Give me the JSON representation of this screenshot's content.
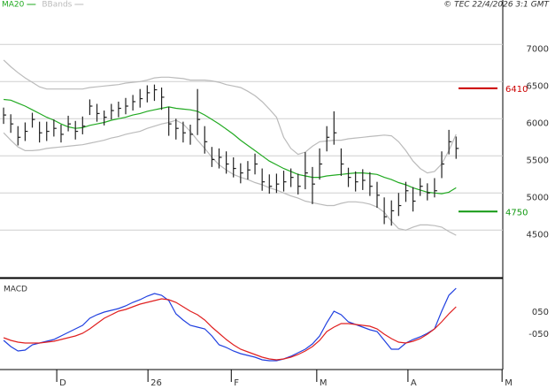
{
  "chart_data": [
    {
      "type": "ohlc",
      "note": "© TEC 22/4/2026 3:1 GMT",
      "xlim": [
        -0.5,
        69.5
      ],
      "ylim": [
        3860,
        7480
      ],
      "yticks": [
        4500,
        5000,
        5500,
        6000,
        6500,
        7000
      ],
      "grid": true,
      "bar_color": "#222222",
      "high": [
        6150,
        6060,
        5900,
        5950,
        6080,
        5960,
        5960,
        5990,
        5920,
        6040,
        5970,
        6030,
        6260,
        6200,
        6110,
        6200,
        6230,
        6280,
        6320,
        6400,
        6450,
        6460,
        6420,
        6160,
        6000,
        5960,
        5920,
        6400,
        5900,
        5620,
        5600,
        5560,
        5480,
        5400,
        5430,
        5530,
        5330,
        5250,
        5260,
        5300,
        5330,
        5260,
        5550,
        5350,
        5600,
        5900,
        6100,
        5600,
        5340,
        5290,
        5320,
        5280,
        5150,
        4940,
        4900,
        5000,
        5150,
        5080,
        5200,
        5130,
        5200,
        5560,
        5850,
        5760
      ],
      "low": [
        5930,
        5810,
        5640,
        5700,
        5880,
        5680,
        5700,
        5760,
        5680,
        5830,
        5720,
        5790,
        6050,
        5960,
        5910,
        5990,
        6020,
        6060,
        6110,
        6150,
        6220,
        6240,
        6120,
        5770,
        5720,
        5680,
        5650,
        5780,
        5530,
        5350,
        5330,
        5260,
        5210,
        5130,
        5180,
        5250,
        5030,
        4990,
        5000,
        5020,
        5080,
        4980,
        5050,
        4850,
        5180,
        5560,
        5650,
        5230,
        5080,
        5020,
        5040,
        4960,
        4800,
        4580,
        4560,
        4690,
        4880,
        4750,
        4960,
        4900,
        4940,
        5200,
        5520,
        5460
      ],
      "close": [
        6050,
        5930,
        5750,
        5830,
        5990,
        5810,
        5830,
        5870,
        5790,
        5930,
        5830,
        5900,
        6170,
        6070,
        6020,
        6110,
        6140,
        6170,
        6230,
        6270,
        6350,
        6390,
        6290,
        5930,
        5870,
        5810,
        5790,
        5990,
        5690,
        5450,
        5480,
        5390,
        5330,
        5270,
        5310,
        5390,
        5150,
        5090,
        5120,
        5150,
        5210,
        5090,
        5270,
        5120,
        5390,
        5750,
        5810,
        5390,
        5210,
        5150,
        5170,
        5090,
        4970,
        4680,
        4760,
        4830,
        5030,
        4890,
        5090,
        5000,
        5030,
        5390,
        5690,
        5600
      ],
      "series": [
        {
          "name": "MA20",
          "color": "#22aa22",
          "values": [
            6260,
            6250,
            6210,
            6170,
            6120,
            6070,
            6020,
            5980,
            5930,
            5890,
            5870,
            5880,
            5910,
            5930,
            5950,
            5980,
            6000,
            6020,
            6050,
            6070,
            6100,
            6120,
            6140,
            6160,
            6140,
            6130,
            6120,
            6100,
            6050,
            5990,
            5930,
            5860,
            5790,
            5710,
            5640,
            5570,
            5500,
            5430,
            5380,
            5330,
            5290,
            5250,
            5230,
            5210,
            5210,
            5230,
            5240,
            5250,
            5260,
            5270,
            5270,
            5260,
            5250,
            5210,
            5180,
            5140,
            5110,
            5070,
            5040,
            5010,
            5000,
            4990,
            5010,
            5070
          ]
        },
        {
          "name": "BBands",
          "color": "#bbbbbb",
          "upper": [
            6790,
            6700,
            6620,
            6550,
            6490,
            6430,
            6400,
            6400,
            6400,
            6400,
            6400,
            6400,
            6420,
            6430,
            6440,
            6450,
            6460,
            6480,
            6490,
            6500,
            6520,
            6550,
            6560,
            6560,
            6550,
            6540,
            6520,
            6520,
            6520,
            6510,
            6490,
            6460,
            6440,
            6420,
            6370,
            6310,
            6230,
            6130,
            6020,
            5750,
            5600,
            5520,
            5550,
            5630,
            5690,
            5700,
            5710,
            5710,
            5730,
            5740,
            5750,
            5760,
            5770,
            5780,
            5770,
            5690,
            5570,
            5430,
            5330,
            5270,
            5290,
            5390,
            5570,
            5790
          ],
          "lower": [
            5810,
            5710,
            5620,
            5570,
            5570,
            5580,
            5600,
            5610,
            5620,
            5630,
            5640,
            5650,
            5670,
            5690,
            5710,
            5740,
            5760,
            5790,
            5810,
            5830,
            5870,
            5900,
            5930,
            5950,
            5980,
            5930,
            5830,
            5710,
            5600,
            5480,
            5380,
            5310,
            5250,
            5210,
            5180,
            5140,
            5110,
            5070,
            5040,
            5000,
            4960,
            4930,
            4890,
            4870,
            4850,
            4830,
            4830,
            4860,
            4880,
            4880,
            4870,
            4850,
            4810,
            4740,
            4620,
            4520,
            4500,
            4540,
            4570,
            4570,
            4560,
            4540,
            4480,
            4430
          ]
        }
      ],
      "levels": [
        {
          "value": 6410,
          "color": "#cc0000"
        },
        {
          "value": 4750,
          "color": "#119911"
        }
      ]
    },
    {
      "type": "line",
      "title": "MACD",
      "xlim": [
        -0.5,
        69.5
      ],
      "ylim": [
        -230,
        178
      ],
      "yticks": [
        {
          "value": 50,
          "label": "050"
        },
        {
          "value": -50,
          "label": "-050"
        }
      ],
      "xticks": [
        {
          "value": 7.4,
          "label": "D"
        },
        {
          "value": 20.1,
          "label": "26"
        },
        {
          "value": 31.7,
          "label": "F"
        },
        {
          "value": 43.6,
          "label": "M"
        },
        {
          "value": 56.3,
          "label": "A"
        },
        {
          "value": 69.4,
          "label": "M"
        }
      ],
      "series": [
        {
          "color": "#2040e0",
          "values": [
            -98,
            -126,
            -146,
            -142,
            -118,
            -110,
            -102,
            -94,
            -78,
            -62,
            -46,
            -30,
            2,
            18,
            30,
            38,
            46,
            58,
            74,
            86,
            102,
            114,
            106,
            82,
            22,
            -6,
            -30,
            -38,
            -46,
            -78,
            -118,
            -130,
            -146,
            -158,
            -166,
            -174,
            -186,
            -190,
            -190,
            -182,
            -170,
            -154,
            -138,
            -114,
            -78,
            -18,
            34,
            18,
            -14,
            -26,
            -38,
            -50,
            -58,
            -98,
            -138,
            -138,
            -110,
            -94,
            -82,
            -66,
            -46,
            34,
            106,
            138
          ]
        },
        {
          "color": "#e02020",
          "values": [
            -86,
            -98,
            -106,
            -110,
            -110,
            -110,
            -106,
            -102,
            -94,
            -86,
            -78,
            -66,
            -46,
            -22,
            2,
            18,
            34,
            42,
            54,
            66,
            74,
            82,
            90,
            86,
            74,
            54,
            34,
            18,
            -6,
            -38,
            -66,
            -94,
            -118,
            -138,
            -150,
            -162,
            -174,
            -182,
            -186,
            -182,
            -174,
            -162,
            -146,
            -126,
            -98,
            -58,
            -38,
            -22,
            -22,
            -26,
            -30,
            -34,
            -46,
            -70,
            -90,
            -106,
            -110,
            -102,
            -90,
            -70,
            -46,
            -14,
            22,
            54
          ]
        }
      ]
    }
  ]
}
